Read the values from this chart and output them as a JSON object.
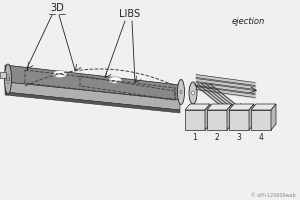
{
  "bg_color": "#f0f0f0",
  "line_color": "#222222",
  "belt_top_color": "#888888",
  "belt_side_color": "#b0b0b0",
  "belt_dark_color": "#555555",
  "belt_front_color": "#aaaaaa",
  "roller_color": "#c8c8c8",
  "roller_dark": "#888888",
  "dashed_color": "#444444",
  "label_3d": "3D",
  "label_libs": "LIBS",
  "label_ejection": "ejection",
  "fraction_labels": [
    "1",
    "2",
    "3",
    "4"
  ],
  "white_particle": "#ffffff",
  "particle_edge": "#999999",
  "box_face": "#d8d8d8",
  "box_top": "#e8e8e8",
  "box_side": "#b8b8b8",
  "title_fontsize": 7,
  "label_fontsize": 6,
  "small_fontsize": 5.5,
  "watermark": "© atf•120609wab"
}
